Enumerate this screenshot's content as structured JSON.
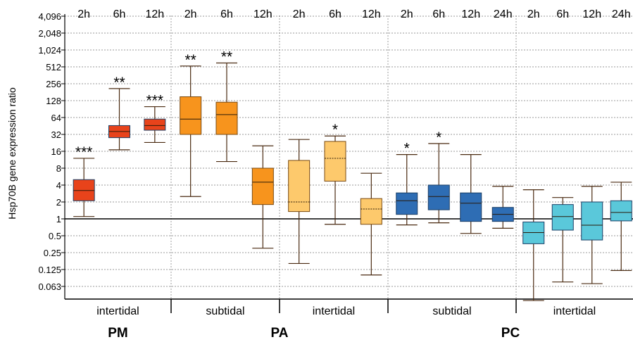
{
  "chart_data": {
    "type": "boxplot",
    "ylabel": "Hsp70B gene expression ratio",
    "yscale": "log2",
    "yticks": [
      "0.063",
      "0.125",
      "0.25",
      "0.5",
      "1",
      "2",
      "4",
      "8",
      "16",
      "32",
      "64",
      "128",
      "256",
      "512",
      "1,024",
      "2,048",
      "4,096"
    ],
    "ytick_values": [
      0.0625,
      0.125,
      0.25,
      0.5,
      1,
      2,
      4,
      8,
      16,
      32,
      64,
      128,
      256,
      512,
      1024,
      2048,
      4096
    ],
    "ylim": [
      0.02,
      9000
    ],
    "reference_line": 1,
    "grid": true,
    "colors": {
      "PM_intertidal": "#e8431b",
      "PA_subtidal": "#f7941d",
      "PA_intertidal": "#fdc96c",
      "PC_subtidal": "#2e6db4",
      "PC_intertidal": "#5ac8da",
      "whisker": "#4a2a10"
    },
    "groups": [
      {
        "species": "PM",
        "habitat": "intertidal",
        "color_key": "PM_intertidal",
        "boxes": [
          {
            "time": "2h",
            "min": 1.1,
            "q1": 2.1,
            "median": 3.2,
            "q3": 5.0,
            "max": 12,
            "sig": "***"
          },
          {
            "time": "6h",
            "min": 17,
            "q1": 28,
            "median": 36,
            "q3": 46,
            "max": 210,
            "sig": "**"
          },
          {
            "time": "12h",
            "min": 23,
            "q1": 38,
            "median": 46,
            "q3": 60,
            "max": 100,
            "sig": "***"
          }
        ]
      },
      {
        "species": "PA",
        "habitat": "subtidal",
        "color_key": "PA_subtidal",
        "boxes": [
          {
            "time": "2h",
            "min": 2.5,
            "q1": 32,
            "median": 60,
            "q3": 150,
            "max": 530,
            "sig": "**"
          },
          {
            "time": "6h",
            "min": 10.5,
            "q1": 32,
            "median": 72,
            "q3": 120,
            "max": 600,
            "sig": "**"
          },
          {
            "time": "12h",
            "min": 0.3,
            "q1": 1.8,
            "median": 4.5,
            "q3": 8,
            "max": 20,
            "sig": ""
          }
        ]
      },
      {
        "species": "PA",
        "habitat": "intertidal",
        "color_key": "PA_intertidal",
        "boxes": [
          {
            "time": "2h",
            "min": 0.16,
            "q1": 1.35,
            "median": 2,
            "q3": 11,
            "max": 26,
            "sig": ""
          },
          {
            "time": "6h",
            "min": 0.8,
            "q1": 4.7,
            "median": 12,
            "q3": 24,
            "max": 30,
            "sig": "*"
          },
          {
            "time": "12h",
            "min": 0.1,
            "q1": 0.8,
            "median": 1.5,
            "q3": 2.3,
            "max": 6.5,
            "sig": ""
          }
        ]
      },
      {
        "species": "PC",
        "habitat": "subtidal",
        "color_key": "PC_subtidal",
        "boxes": [
          {
            "time": "2h",
            "min": 0.78,
            "q1": 1.2,
            "median": 2.1,
            "q3": 2.9,
            "max": 14,
            "sig": "*"
          },
          {
            "time": "6h",
            "min": 0.85,
            "q1": 1.45,
            "median": 2.5,
            "q3": 4.0,
            "max": 22,
            "sig": "*"
          },
          {
            "time": "12h",
            "min": 0.55,
            "q1": 0.9,
            "median": 1.9,
            "q3": 2.9,
            "max": 14,
            "sig": ""
          },
          {
            "time": "24h",
            "min": 0.68,
            "q1": 0.9,
            "median": 1.2,
            "q3": 1.6,
            "max": 3.8,
            "sig": ""
          }
        ]
      },
      {
        "species": "PC",
        "habitat": "intertidal",
        "color_key": "PC_intertidal",
        "boxes": [
          {
            "time": "2h",
            "min": 0.035,
            "q1": 0.36,
            "median": 0.57,
            "q3": 0.88,
            "max": 3.3,
            "sig": ""
          },
          {
            "time": "6h",
            "min": 0.075,
            "q1": 0.63,
            "median": 1.1,
            "q3": 1.8,
            "max": 2.4,
            "sig": ""
          },
          {
            "time": "12h",
            "min": 0.07,
            "q1": 0.42,
            "median": 0.77,
            "q3": 2.0,
            "max": 3.8,
            "sig": ""
          },
          {
            "time": "24h",
            "min": 0.12,
            "q1": 0.92,
            "median": 1.3,
            "q3": 2.1,
            "max": 4.5,
            "sig": ""
          }
        ]
      }
    ],
    "species_labels": [
      "PM",
      "PA",
      "PC"
    ]
  }
}
